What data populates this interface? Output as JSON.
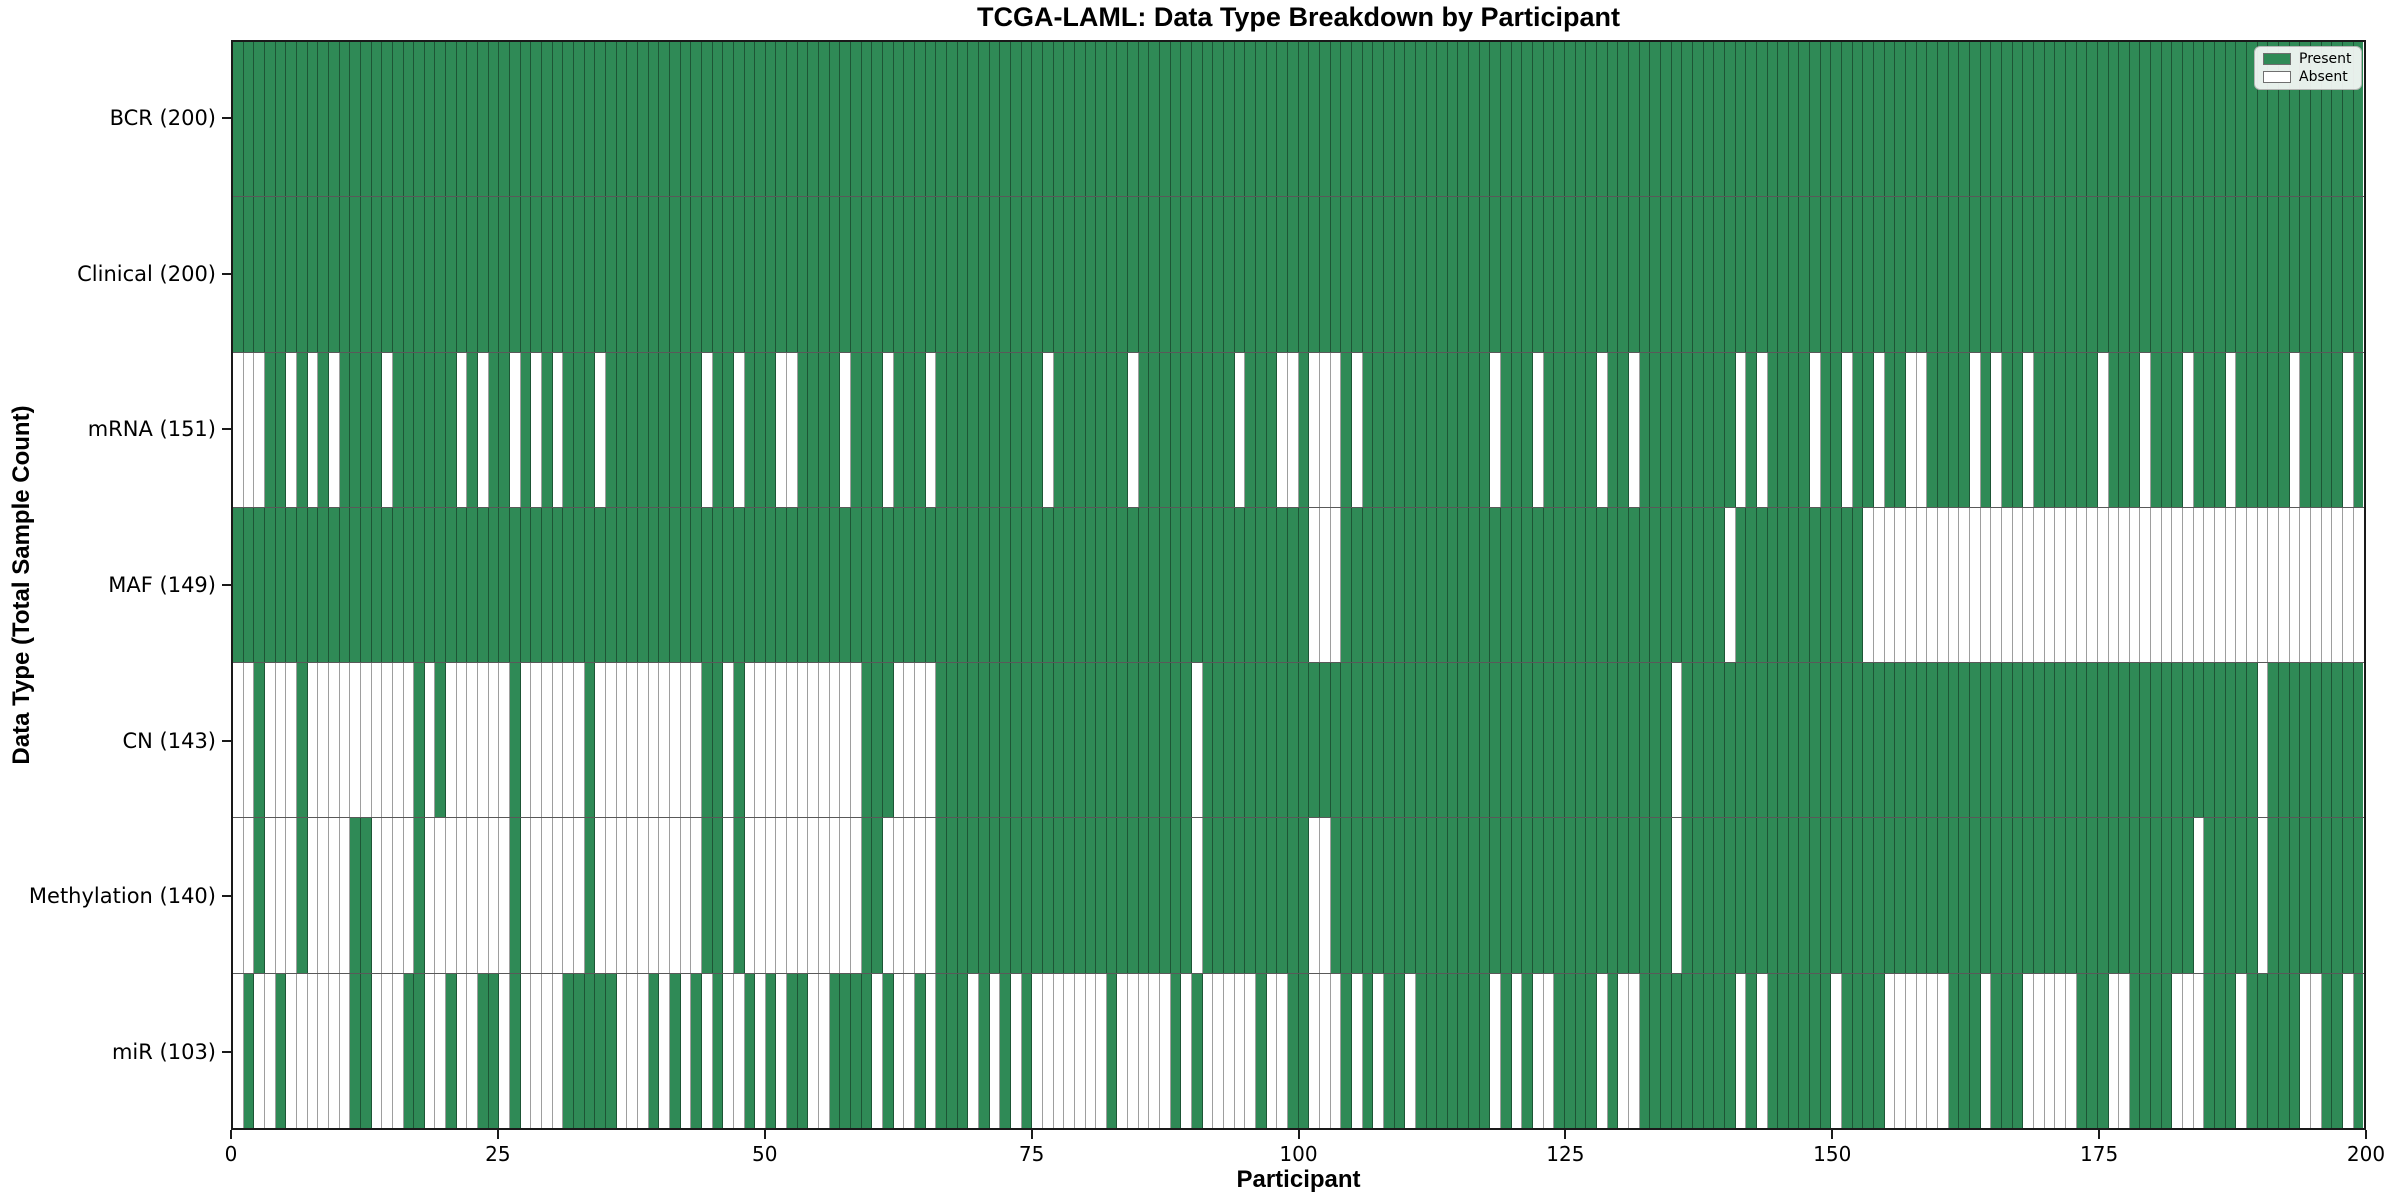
{
  "title": "TCGA-LAML: Data Type Breakdown by Participant",
  "axes": {
    "xlabel": "Participant",
    "ylabel": "Data Type (Total Sample Count)",
    "x_ticks": [
      0,
      25,
      50,
      75,
      100,
      125,
      150,
      175,
      200
    ]
  },
  "legend": {
    "items": [
      {
        "label": "Present",
        "color": "#2f8a56"
      },
      {
        "label": "Absent",
        "color": "#ffffff"
      }
    ]
  },
  "colors": {
    "present": "#2f8a56",
    "absent": "#ffffff",
    "cell_edge": "rgba(0,0,0,0.38)",
    "row_divider": "rgba(0,0,0,0.65)",
    "spine": "#1a1a1a"
  },
  "chart_data": {
    "type": "heatmap",
    "title": "TCGA-LAML: Data Type Breakdown by Participant",
    "xlabel": "Participant",
    "ylabel": "Data Type (Total Sample Count)",
    "n_participants": 200,
    "x_range": [
      0,
      200
    ],
    "value_legend": {
      "1": "Present",
      "0": "Absent"
    },
    "rows": [
      {
        "label": "BCR (200)",
        "name": "BCR",
        "present_count": 200,
        "absent_indices": []
      },
      {
        "label": "Clinical (200)",
        "name": "Clinical",
        "present_count": 200,
        "absent_indices": []
      },
      {
        "label": "mRNA (151)",
        "name": "mRNA",
        "present_count": 151,
        "absent_indices": [
          0,
          1,
          2,
          5,
          7,
          9,
          14,
          21,
          23,
          26,
          28,
          30,
          34,
          44,
          47,
          51,
          52,
          57,
          61,
          65,
          76,
          84,
          94,
          98,
          99,
          101,
          102,
          103,
          105,
          118,
          122,
          128,
          131,
          141,
          143,
          148,
          151,
          154,
          157,
          158,
          163,
          165,
          168,
          175,
          179,
          183,
          187,
          193,
          198
        ]
      },
      {
        "label": "MAF (149)",
        "name": "MAF",
        "present_count": 149,
        "absent_indices": [
          101,
          102,
          103,
          140,
          153,
          154,
          155,
          156,
          157,
          158,
          159,
          160,
          161,
          162,
          163,
          164,
          165,
          166,
          167,
          168,
          169,
          170,
          171,
          172,
          173,
          174,
          175,
          176,
          177,
          178,
          179,
          180,
          181,
          182,
          183,
          184,
          185,
          186,
          187,
          188,
          189,
          190,
          191,
          192,
          193,
          194,
          195,
          196,
          197,
          198,
          199
        ]
      },
      {
        "label": "CN (143)",
        "name": "CN",
        "present_count": 143,
        "absent_indices": [
          0,
          1,
          3,
          4,
          5,
          7,
          8,
          9,
          10,
          11,
          12,
          13,
          14,
          15,
          16,
          18,
          20,
          21,
          22,
          23,
          24,
          25,
          27,
          28,
          29,
          30,
          31,
          32,
          34,
          35,
          36,
          37,
          38,
          39,
          40,
          41,
          42,
          43,
          46,
          48,
          49,
          50,
          51,
          52,
          53,
          54,
          55,
          56,
          57,
          58,
          62,
          63,
          64,
          65,
          90,
          135,
          190
        ]
      },
      {
        "label": "Methylation (140)",
        "name": "Methylation",
        "present_count": 140,
        "absent_indices": [
          0,
          1,
          3,
          4,
          5,
          7,
          8,
          9,
          10,
          13,
          14,
          15,
          16,
          18,
          19,
          20,
          21,
          22,
          23,
          24,
          25,
          27,
          28,
          29,
          30,
          31,
          32,
          34,
          35,
          36,
          37,
          38,
          39,
          40,
          41,
          42,
          43,
          46,
          48,
          49,
          50,
          51,
          52,
          53,
          54,
          55,
          56,
          57,
          58,
          61,
          62,
          63,
          64,
          65,
          90,
          101,
          102,
          135,
          184,
          190
        ]
      },
      {
        "label": "miR (103)",
        "name": "miR",
        "present_count": 103,
        "absent_indices": [
          0,
          2,
          3,
          5,
          6,
          7,
          8,
          9,
          10,
          13,
          14,
          15,
          18,
          19,
          21,
          22,
          25,
          27,
          28,
          29,
          30,
          36,
          37,
          38,
          40,
          42,
          44,
          46,
          47,
          49,
          51,
          54,
          55,
          60,
          62,
          63,
          65,
          69,
          71,
          73,
          75,
          76,
          77,
          78,
          79,
          80,
          81,
          83,
          84,
          85,
          86,
          87,
          89,
          91,
          92,
          93,
          94,
          95,
          97,
          98,
          101,
          102,
          103,
          105,
          107,
          110,
          118,
          120,
          122,
          123,
          128,
          130,
          131,
          141,
          143,
          150,
          155,
          156,
          157,
          158,
          159,
          160,
          164,
          168,
          169,
          170,
          171,
          172,
          176,
          177,
          182,
          183,
          184,
          188,
          194,
          195,
          198
        ]
      }
    ]
  }
}
